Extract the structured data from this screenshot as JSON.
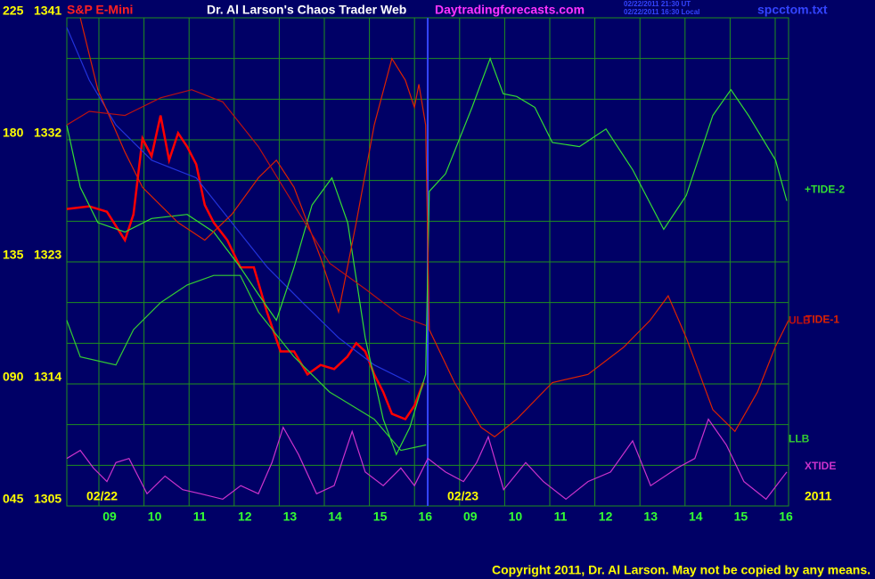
{
  "header": {
    "file": "spcctom.txt",
    "site": "Daytradingforecasts.com",
    "timestamps": [
      "02/22/2011 21:30 UT",
      "02/22/2011 16:30 Local"
    ]
  },
  "footer": {
    "copyright": "Copyright 2011, Dr. Al Larson. May not be copied by any means."
  },
  "chart_data": {
    "type": "line",
    "title": "Dr. Al Larson's Chaos Trader Web",
    "subtitle": "S&P E-Mini",
    "date_labels": [
      "02/22",
      "02/23",
      "2011"
    ],
    "grid": true,
    "xlim": [
      0,
      16
    ],
    "xticks": [
      {
        "value": 1,
        "label": "09"
      },
      {
        "value": 2,
        "label": "10"
      },
      {
        "value": 3,
        "label": "11"
      },
      {
        "value": 4,
        "label": "12"
      },
      {
        "value": 5,
        "label": "13"
      },
      {
        "value": 6,
        "label": "14"
      },
      {
        "value": 7,
        "label": "15"
      },
      {
        "value": 8,
        "label": "16"
      },
      {
        "value": 9,
        "label": "09"
      },
      {
        "value": 10,
        "label": "10"
      },
      {
        "value": 11,
        "label": "11"
      },
      {
        "value": 12,
        "label": "12"
      },
      {
        "value": 13,
        "label": "13"
      },
      {
        "value": 14,
        "label": "14"
      },
      {
        "value": 15,
        "label": "15"
      },
      {
        "value": 16,
        "label": "16"
      }
    ],
    "ylim": [
      1305,
      1341
    ],
    "yticks": [
      1305,
      1314,
      1323,
      1332,
      1341
    ],
    "y2lim": [
      45,
      225
    ],
    "y2ticks": [
      {
        "value": 45,
        "label": "045"
      },
      {
        "value": 90,
        "label": "090"
      },
      135,
      180,
      225
    ],
    "series": [
      {
        "color": "#ff0000",
        "x": [
          0.05,
          0.55,
          0.94,
          1.34,
          1.53,
          1.73,
          1.93,
          2.13,
          2.32,
          2.52,
          2.72,
          2.92,
          3.11,
          3.31,
          3.61,
          3.9,
          4.2,
          4.49,
          4.79,
          5.09,
          5.39,
          5.68,
          5.98,
          6.27,
          6.47,
          6.67,
          6.87,
          7.07,
          7.26,
          7.56,
          7.76,
          7.96
        ],
        "values": [
          1326.9,
          1327.1,
          1326.7,
          1324.6,
          1326.5,
          1332.1,
          1330.8,
          1333.8,
          1330.5,
          1332.5,
          1331.5,
          1330.2,
          1327.2,
          1325.9,
          1324.6,
          1322.6,
          1322.6,
          1319.3,
          1316.4,
          1316.4,
          1314.7,
          1315.4,
          1315.1,
          1316.0,
          1317.0,
          1316.4,
          1314.7,
          1313.4,
          1311.8,
          1311.4,
          1312.4,
          1314.1
        ]
      },
      {
        "color": "#2233dd",
        "x": [
          0.05,
          0.55,
          1.14,
          1.93,
          2.92,
          3.71,
          4.5,
          5.28,
          6.08,
          6.87,
          7.66
        ],
        "values": [
          1340.3,
          1336.4,
          1333.1,
          1330.5,
          1329.2,
          1325.9,
          1322.6,
          1320.0,
          1317.4,
          1315.4,
          1314.1
        ]
      },
      {
        "name": "+TIDE-2",
        "color": "#33dd33",
        "x": [
          0.05,
          0.35,
          0.74,
          1.34,
          1.93,
          2.72,
          3.31,
          3.9,
          4.3,
          4.7,
          5.09,
          5.49,
          5.93,
          6.28,
          6.67,
          7.07,
          7.36,
          7.66,
          8.01,
          8.09,
          8.45,
          9.04,
          9.44,
          9.73,
          10.03,
          10.43,
          10.82,
          11.42,
          12.01,
          12.6,
          13.29,
          13.79,
          14.38,
          14.78,
          15.17,
          15.77,
          16.02
        ],
        "values": [
          1333.1,
          1328.5,
          1325.9,
          1325.2,
          1326.2,
          1326.5,
          1325.2,
          1322.6,
          1320.6,
          1318.7,
          1322.6,
          1327.2,
          1329.2,
          1325.9,
          1317.4,
          1311.4,
          1308.8,
          1310.8,
          1314.7,
          1328.2,
          1329.5,
          1334.4,
          1338.0,
          1335.4,
          1335.2,
          1334.4,
          1331.8,
          1331.5,
          1332.8,
          1329.8,
          1325.4,
          1327.9,
          1333.8,
          1335.7,
          1333.8,
          1330.5,
          1327.5
        ]
      },
      {
        "name": "TIDE-1",
        "color": "#dd2200",
        "x": [
          0.35,
          0.74,
          1.34,
          1.73,
          2.52,
          3.11,
          3.71,
          4.3,
          4.7,
          5.09,
          5.68,
          6.08,
          6.47,
          6.87,
          7.26,
          7.56,
          7.76,
          7.86,
          8.01,
          8.09,
          8.65,
          9.24,
          9.54,
          10.03,
          10.82,
          11.61,
          12.4,
          12.99,
          13.39,
          13.79,
          14.38,
          14.87,
          15.37,
          15.76,
          16.06
        ],
        "values": [
          1341.0,
          1335.7,
          1331.1,
          1328.5,
          1325.9,
          1324.6,
          1326.5,
          1329.2,
          1330.5,
          1328.5,
          1323.3,
          1319.3,
          1325.9,
          1333.1,
          1338.0,
          1336.4,
          1334.4,
          1336.1,
          1333.1,
          1318.0,
          1314.1,
          1310.8,
          1310.1,
          1311.4,
          1314.1,
          1314.7,
          1316.7,
          1318.7,
          1320.5,
          1317.4,
          1312.1,
          1310.5,
          1313.4,
          1316.7,
          1318.7
        ]
      },
      {
        "name": "ULB",
        "color": "#bb1111",
        "x": [
          0.05,
          0.55,
          1.34,
          2.13,
          2.82,
          3.51,
          4.3,
          5.09,
          5.88,
          6.67,
          7.46,
          8.02
        ],
        "values": [
          1333.1,
          1334.1,
          1333.8,
          1335.1,
          1335.7,
          1334.8,
          1331.5,
          1327.2,
          1322.9,
          1321.0,
          1319.0,
          1318.3
        ]
      },
      {
        "name": "LLB",
        "color": "#33cc33",
        "x": [
          0.05,
          0.35,
          1.14,
          1.53,
          2.13,
          2.72,
          3.31,
          3.9,
          4.3,
          5.09,
          5.88,
          6.87,
          7.46,
          8.02
        ],
        "values": [
          1318.7,
          1316.0,
          1315.4,
          1318.0,
          1320.0,
          1321.3,
          1322.0,
          1322.0,
          1319.3,
          1316.0,
          1313.4,
          1311.4,
          1309.1,
          1309.5
        ]
      },
      {
        "name": "XTIDE",
        "color": "#cc33cc",
        "x": [
          0.05,
          0.35,
          0.64,
          0.94,
          1.14,
          1.43,
          1.83,
          2.23,
          2.62,
          3.02,
          3.51,
          3.91,
          4.3,
          4.6,
          4.85,
          5.19,
          5.59,
          5.98,
          6.38,
          6.67,
          7.07,
          7.46,
          7.76,
          8.06,
          8.45,
          8.85,
          9.14,
          9.4,
          9.74,
          10.23,
          10.62,
          11.12,
          11.61,
          12.11,
          12.6,
          13.0,
          13.59,
          13.98,
          14.28,
          14.68,
          15.07,
          15.56,
          16.02
        ],
        "values": [
          1308.5,
          1309.1,
          1307.8,
          1306.8,
          1308.2,
          1308.5,
          1305.9,
          1307.2,
          1306.2,
          1305.9,
          1305.5,
          1306.5,
          1305.9,
          1308.2,
          1310.8,
          1308.8,
          1305.9,
          1306.5,
          1310.5,
          1307.5,
          1306.5,
          1307.8,
          1306.5,
          1308.5,
          1307.5,
          1306.8,
          1308.2,
          1310.1,
          1306.2,
          1308.2,
          1306.8,
          1305.5,
          1306.8,
          1307.5,
          1309.8,
          1306.5,
          1307.8,
          1308.5,
          1311.4,
          1309.5,
          1306.8,
          1305.5,
          1307.5
        ]
      }
    ]
  }
}
